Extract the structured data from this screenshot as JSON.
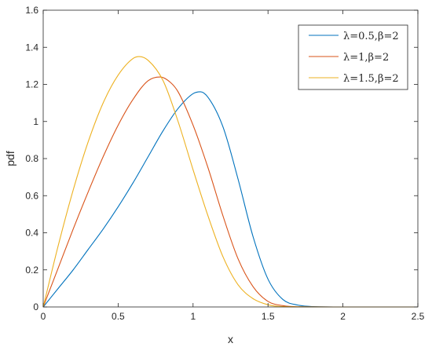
{
  "chart_data": {
    "type": "line",
    "title": "",
    "xlabel": "x",
    "ylabel": "pdf",
    "xlim": [
      0,
      2.5
    ],
    "ylim": [
      0,
      1.6
    ],
    "xticks": [
      0,
      0.5,
      1,
      1.5,
      2,
      2.5
    ],
    "xtick_labels": [
      "0",
      "0.5",
      "1",
      "1.5",
      "2",
      "2.5"
    ],
    "yticks": [
      0,
      0.2,
      0.4,
      0.6,
      0.8,
      1,
      1.2,
      1.4,
      1.6
    ],
    "ytick_labels": [
      "0",
      "0.2",
      "0.4",
      "0.6",
      "0.8",
      "1",
      "1.2",
      "1.4",
      "1.6"
    ],
    "grid": false,
    "legend_position": "top-right",
    "series": [
      {
        "name": "λ=0.5,β=2",
        "color": "#0072BD",
        "x": [
          0,
          0.1,
          0.2,
          0.3,
          0.4,
          0.5,
          0.6,
          0.7,
          0.8,
          0.9,
          1.0,
          1.05,
          1.1,
          1.2,
          1.3,
          1.4,
          1.5,
          1.6,
          1.7,
          1.8,
          2.0,
          2.5
        ],
        "y": [
          0,
          0.1,
          0.2,
          0.31,
          0.42,
          0.54,
          0.67,
          0.81,
          0.95,
          1.07,
          1.15,
          1.16,
          1.13,
          0.97,
          0.69,
          0.38,
          0.15,
          0.04,
          0.01,
          0.002,
          0,
          0
        ]
      },
      {
        "name": "λ=1,β=2",
        "color": "#D95319",
        "x": [
          0,
          0.1,
          0.2,
          0.3,
          0.4,
          0.5,
          0.6,
          0.7,
          0.78,
          0.85,
          0.9,
          1.0,
          1.1,
          1.2,
          1.3,
          1.4,
          1.5,
          1.6,
          1.7,
          2.0,
          2.5
        ],
        "y": [
          0,
          0.21,
          0.42,
          0.62,
          0.81,
          0.98,
          1.12,
          1.22,
          1.24,
          1.21,
          1.16,
          0.98,
          0.75,
          0.49,
          0.26,
          0.11,
          0.03,
          0.007,
          0.001,
          0,
          0
        ]
      },
      {
        "name": "λ=1.5,β=2",
        "color": "#EDB120",
        "x": [
          0,
          0.1,
          0.2,
          0.3,
          0.4,
          0.5,
          0.6,
          0.64,
          0.7,
          0.8,
          0.9,
          1.0,
          1.1,
          1.2,
          1.3,
          1.4,
          1.5,
          1.6,
          2.0,
          2.5
        ],
        "y": [
          0,
          0.33,
          0.63,
          0.89,
          1.1,
          1.25,
          1.34,
          1.35,
          1.33,
          1.22,
          1.0,
          0.74,
          0.49,
          0.27,
          0.12,
          0.045,
          0.012,
          0.002,
          0,
          0
        ]
      }
    ]
  }
}
